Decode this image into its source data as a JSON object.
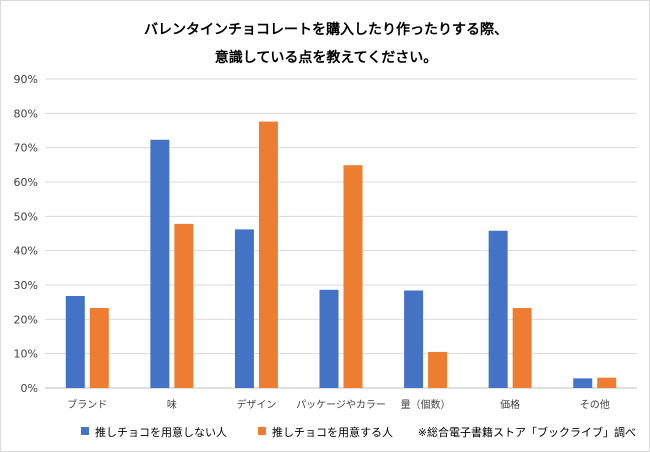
{
  "chart_data": {
    "type": "bar",
    "title": [
      "バレンタインチョコレートを購入したり作ったりする際、",
      "意識している点を教えてください。"
    ],
    "categories": [
      "ブランド",
      "味",
      "デザイン",
      "パッケージやカラー",
      "量（個数）",
      "価格",
      "その他"
    ],
    "series": [
      {
        "name": "推しチョコを用意しない人",
        "color": "#4472C4",
        "values": [
          26.8,
          72.3,
          46.2,
          28.6,
          28.4,
          45.8,
          2.8
        ]
      },
      {
        "name": "推しチョコを用意する人",
        "color": "#ED7D31",
        "values": [
          23.3,
          47.8,
          77.6,
          64.9,
          10.5,
          23.3,
          3.0
        ]
      }
    ],
    "ylim": [
      0,
      90
    ],
    "yticks": [
      "0%",
      "10%",
      "20%",
      "30%",
      "40%",
      "50%",
      "60%",
      "70%",
      "80%",
      "90%"
    ],
    "grid": true,
    "legend": "bottom",
    "gridColor": "#d9d9d9",
    "axisColor": "#bfbfbf"
  },
  "source_note": "※総合電子書籍ストア「ブックライブ」調べ"
}
